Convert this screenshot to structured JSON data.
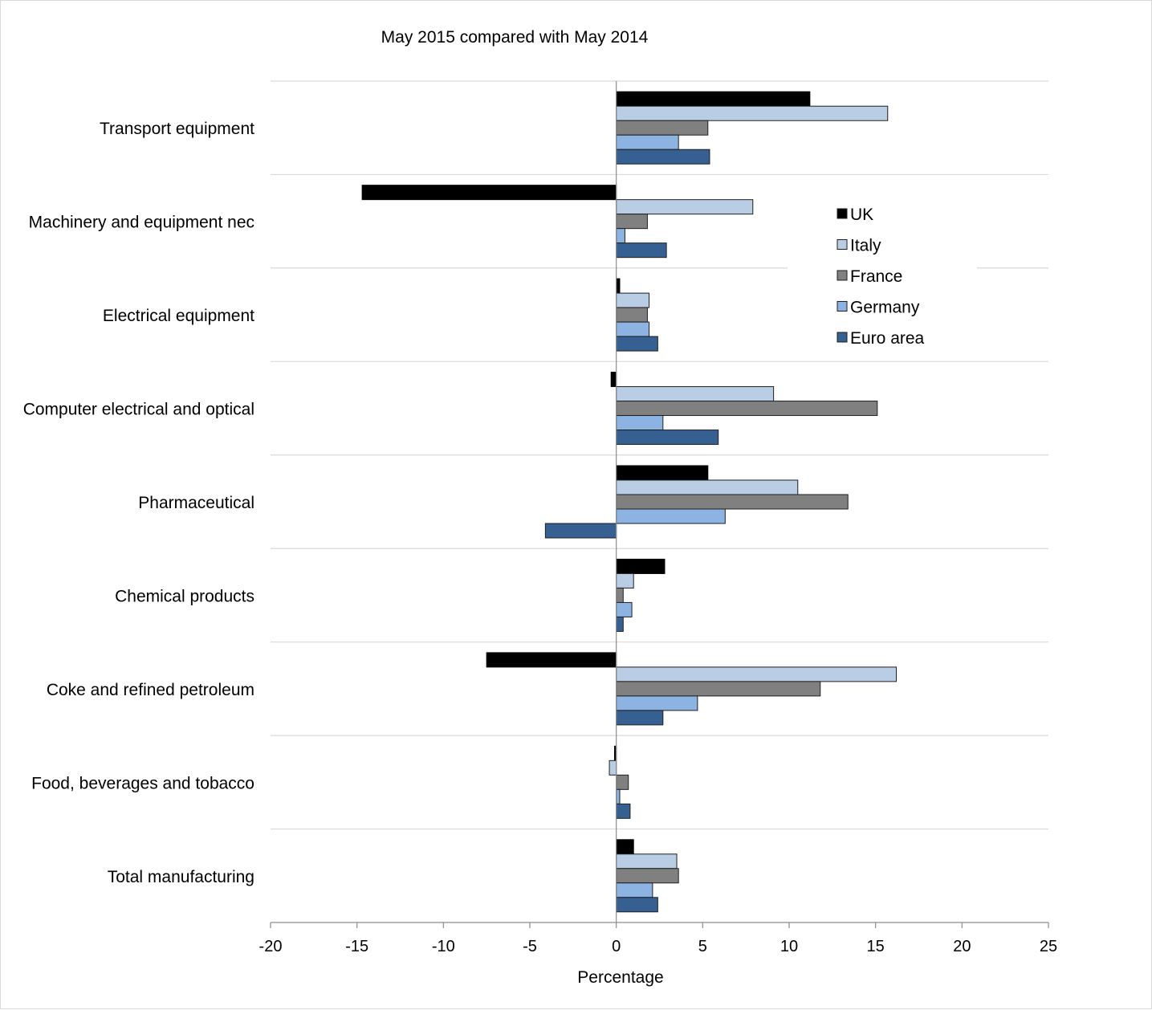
{
  "chart_data": {
    "type": "bar",
    "orientation": "horizontal",
    "title": "May 2015 compared with May 2014",
    "xlabel": "Percentage",
    "ylabel": "",
    "xlim": [
      -20,
      25
    ],
    "xticks": [
      -20,
      -15,
      -10,
      -5,
      0,
      5,
      10,
      15,
      20,
      25
    ],
    "grid": "horizontal category separators",
    "legend_position": "right",
    "categories": [
      "Transport equipment",
      "Machinery and equipment nec",
      "Electrical equipment",
      "Computer electrical and optical",
      "Pharmaceutical",
      "Chemical products",
      "Coke and refined petroleum",
      "Food, beverages and tobacco",
      "Total manufacturing"
    ],
    "series": [
      {
        "name": "UK",
        "color": "#000000",
        "values": [
          11.2,
          -14.7,
          0.2,
          -0.3,
          5.3,
          2.8,
          -7.5,
          -0.1,
          1.0
        ]
      },
      {
        "name": "Italy",
        "color": "#b9cde5",
        "values": [
          15.7,
          7.9,
          1.9,
          9.1,
          10.5,
          1.0,
          16.2,
          -0.4,
          3.5
        ]
      },
      {
        "name": "France",
        "color": "#808080",
        "values": [
          5.3,
          1.8,
          1.8,
          15.1,
          13.4,
          0.4,
          11.8,
          0.7,
          3.6
        ]
      },
      {
        "name": "Germany",
        "color": "#8db3e2",
        "values": [
          3.6,
          0.5,
          1.9,
          2.7,
          6.3,
          0.9,
          4.7,
          0.2,
          2.1
        ]
      },
      {
        "name": "Euro area",
        "color": "#376092",
        "values": [
          5.4,
          2.9,
          2.4,
          5.9,
          -4.1,
          0.4,
          2.7,
          0.8,
          2.4
        ]
      }
    ]
  }
}
